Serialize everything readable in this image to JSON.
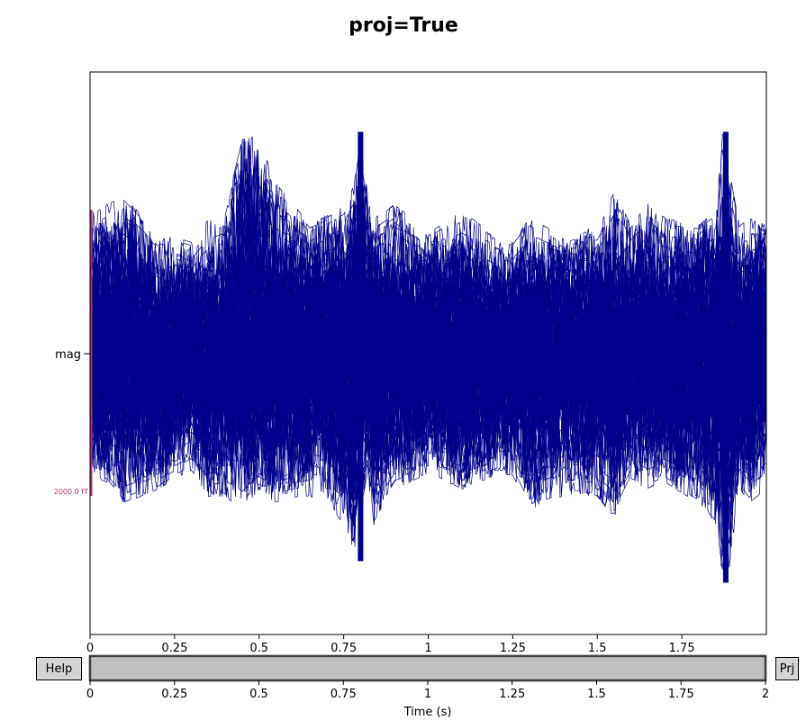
{
  "figure": {
    "title": "proj=True"
  },
  "buttons": {
    "help_label": "Help",
    "proj_label": "Prj"
  },
  "colors": {
    "trace": "#00008b",
    "scalebar": "#b0306b",
    "scrollbar_fill": "#c0c0c0",
    "button_bg": "#d3d3d3"
  },
  "chart_data": [
    {
      "type": "line",
      "title": "",
      "xlabel": "",
      "ylabel": "",
      "channel_label": "mag",
      "x_range": [
        0,
        2
      ],
      "xticks": [
        0,
        0.25,
        0.5,
        0.75,
        1,
        1.25,
        1.5,
        1.75
      ],
      "xtick_labels": [
        "0",
        "0.25",
        "0.5",
        "0.75",
        "1",
        "1.25",
        "1.5",
        "1.75"
      ],
      "grid": false,
      "scalebar_label": "2000.0 fT",
      "series_count": 102,
      "envelope": {
        "x": [
          0,
          0.05,
          0.1,
          0.2,
          0.3,
          0.35,
          0.4,
          0.45,
          0.5,
          0.55,
          0.65,
          0.7,
          0.75,
          0.78,
          0.8,
          0.82,
          0.84,
          0.9,
          1.0,
          1.1,
          1.2,
          1.25,
          1.3,
          1.4,
          1.5,
          1.55,
          1.6,
          1.65,
          1.7,
          1.8,
          1.85,
          1.87,
          1.88,
          1.89,
          1.92,
          1.95,
          2.0
        ],
        "upper": [
          1000,
          1050,
          1100,
          850,
          780,
          950,
          1000,
          1500,
          1550,
          1200,
          900,
          980,
          1050,
          1200,
          1550,
          1200,
          950,
          1050,
          850,
          1000,
          820,
          780,
          950,
          820,
          900,
          1150,
          900,
          1050,
          950,
          900,
          1000,
          1550,
          1550,
          1300,
          900,
          950,
          900
        ],
        "lower": [
          -850,
          -900,
          -1050,
          -950,
          -820,
          -1000,
          -1000,
          -1100,
          -950,
          -1050,
          -1000,
          -1050,
          -1200,
          -1450,
          -1100,
          -850,
          -1200,
          -950,
          -850,
          -950,
          -850,
          -850,
          -1100,
          -1000,
          -1000,
          -1150,
          -900,
          -950,
          -900,
          -1050,
          -1200,
          -1600,
          -1250,
          -1500,
          -950,
          -1050,
          -950
        ]
      },
      "events": [
        {
          "x": 0.8,
          "peak": 1550,
          "trough": -1450
        },
        {
          "x": 1.88,
          "peak": 1550,
          "trough": -1600
        }
      ]
    },
    {
      "type": "scrollbar",
      "xlabel": "Time (s)",
      "x_range": [
        0,
        2
      ],
      "window": [
        0,
        2
      ],
      "xticks": [
        0,
        0.25,
        0.5,
        0.75,
        1,
        1.25,
        1.5,
        1.75,
        2
      ],
      "xtick_labels": [
        "0",
        "0.25",
        "0.5",
        "0.75",
        "1",
        "1.25",
        "1.5",
        "1.75",
        "2"
      ]
    }
  ]
}
